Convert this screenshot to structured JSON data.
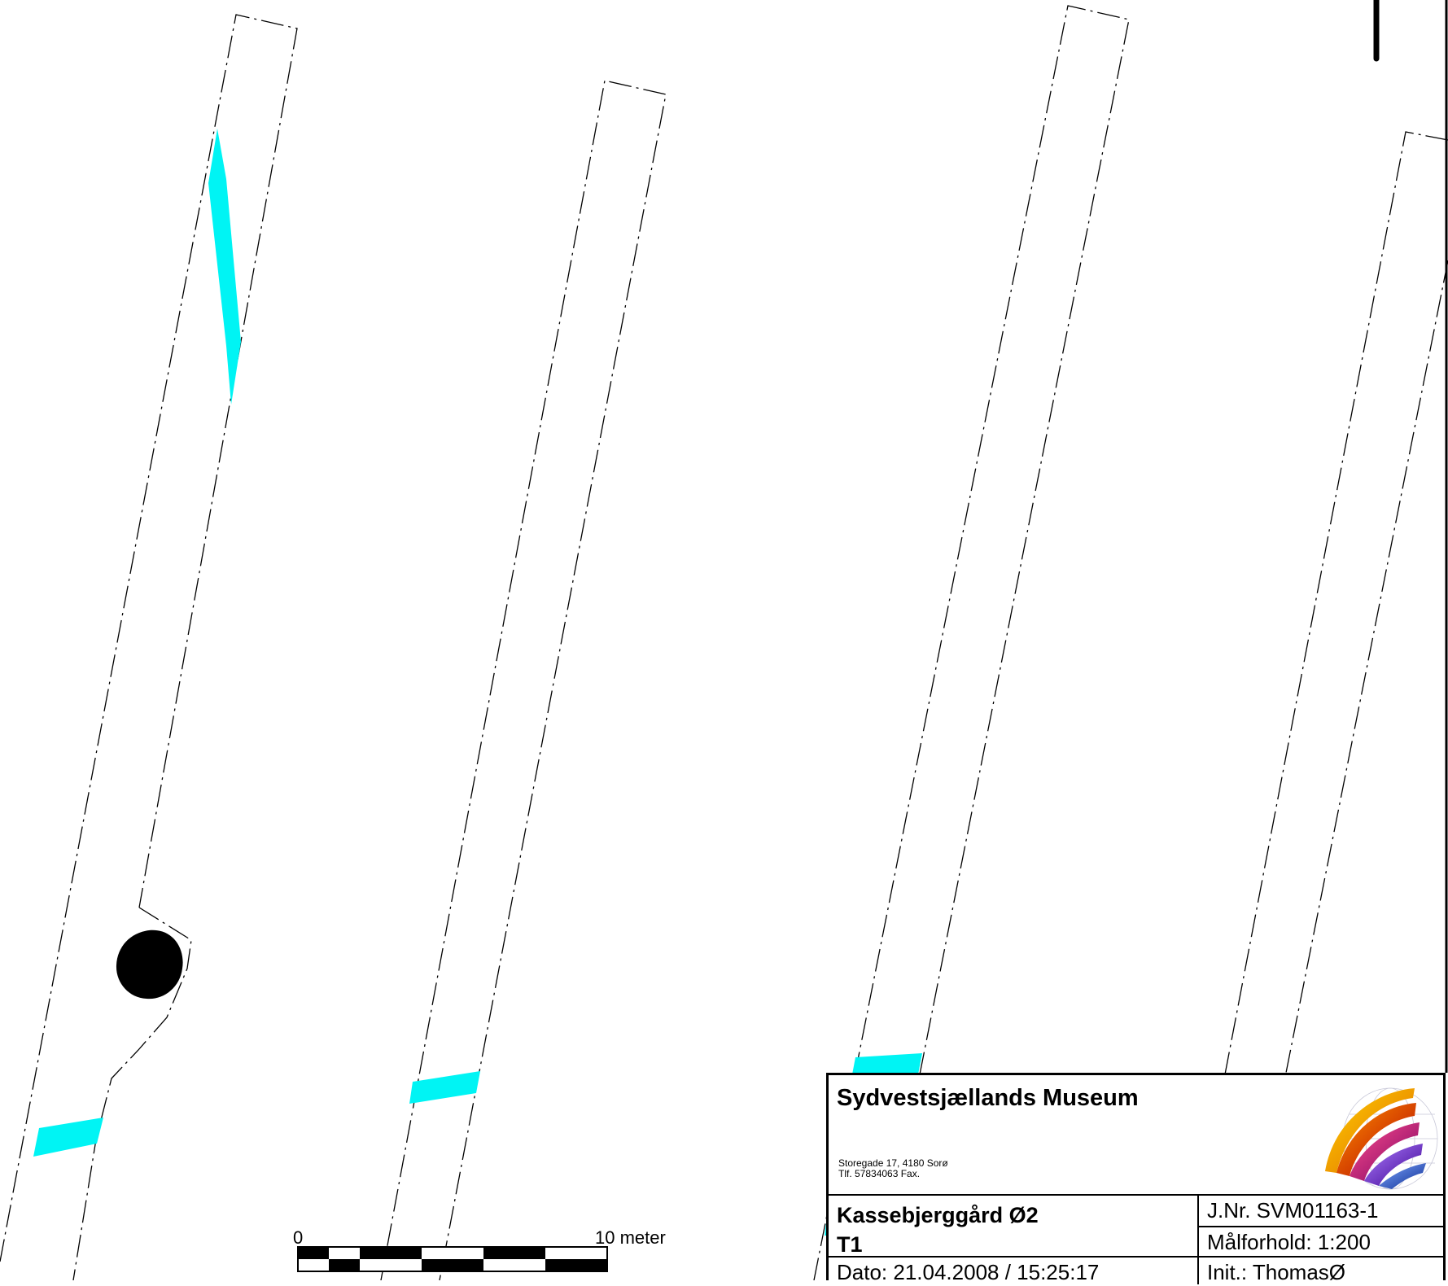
{
  "map": {
    "features": [
      "trench-outline",
      "cyan-feature",
      "black-pit"
    ],
    "colors": {
      "feature": "#00f4f4",
      "pit": "#000000",
      "outline": "#000000"
    }
  },
  "scale_bar": {
    "start_label": "0",
    "end_label": "10 meter"
  },
  "title_block": {
    "organization": "Sydvestsjællands Museum",
    "address_line1": "Storegade 17, 4180 Sorø",
    "address_line2": "Tlf. 57834063 Fax.",
    "logo_icon": "museum-logo-icon",
    "site_name": "Kassebjerggård Ø2",
    "site_code": "T1",
    "journal_number": "J.Nr. SVM01163-1",
    "scale": "Målforhold: 1:200",
    "date": "Dato: 21.04.2008 / 15:25:17",
    "initials": "Init.: ThomasØ"
  }
}
